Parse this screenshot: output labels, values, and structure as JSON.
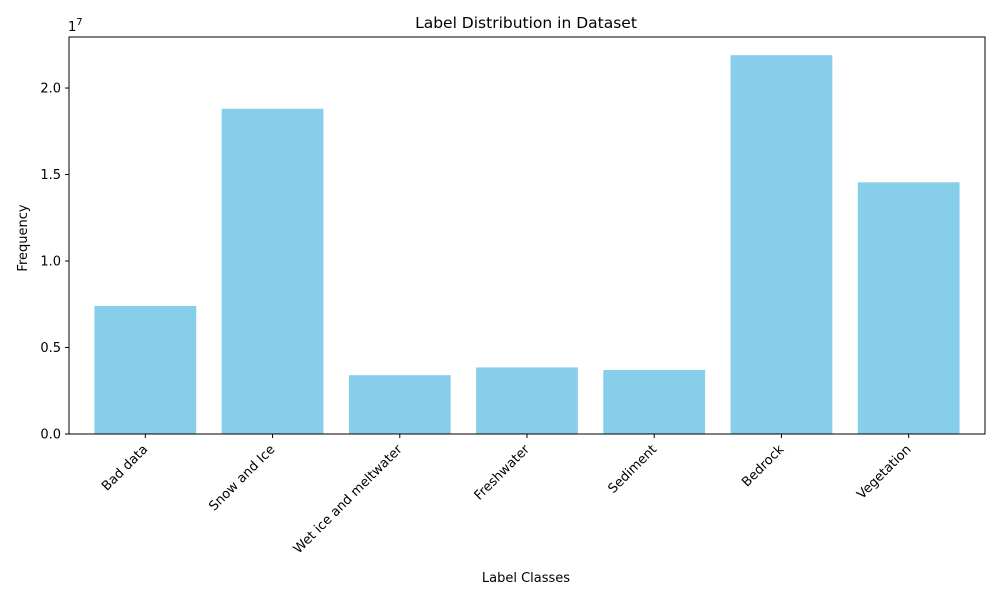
{
  "chart_data": {
    "type": "bar",
    "title": "Label Distribution in Dataset",
    "xlabel": "Label Classes",
    "ylabel": "Frequency",
    "y_offset_text": "1e7",
    "y_scale": 10000000,
    "categories": [
      "Bad data",
      "Snow and Ice",
      "Wet ice and meltwater",
      "Freshwater",
      "Sediment",
      "Bedrock",
      "Vegetation"
    ],
    "values": [
      7400000,
      18800000,
      3400000,
      3850000,
      3700000,
      21900000,
      14550000
    ],
    "ylim": [
      0,
      22950000
    ],
    "yticks": [
      0,
      5000000,
      10000000,
      15000000,
      20000000
    ],
    "ytick_labels": [
      "0.0",
      "0.5",
      "1.0",
      "1.5",
      "2.0"
    ],
    "bar_color": "#87ceeb",
    "grid": false,
    "legend": "none",
    "x_tick_rotation": 45
  }
}
